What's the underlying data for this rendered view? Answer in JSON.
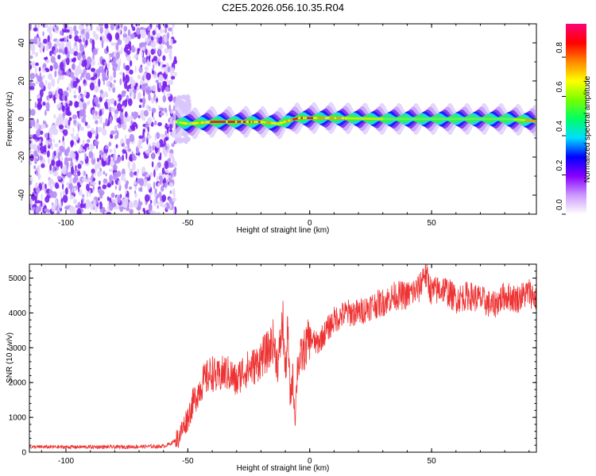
{
  "title": "C2E5.2026.056.10.35.R04",
  "chart_data": [
    {
      "type": "heatmap",
      "name": "spectrogram",
      "xlabel": "Height of straight line (km)",
      "ylabel": "Frequency (Hz)",
      "xlim": [
        -115,
        93
      ],
      "ylim": [
        -50,
        50
      ],
      "xticks": [
        -100,
        -50,
        0,
        50
      ],
      "yticks": [
        40,
        20,
        0,
        -20,
        -40
      ],
      "noise_region_x": [
        -115,
        -55
      ],
      "signal_band": [
        {
          "x": -55,
          "freq": -1.5,
          "amp": 0.35
        },
        {
          "x": -50,
          "freq": -2.5,
          "amp": 0.55
        },
        {
          "x": -40,
          "freq": -1.5,
          "amp": 0.9
        },
        {
          "x": -20,
          "freq": -1.5,
          "amp": 0.9
        },
        {
          "x": -13,
          "freq": -2.5,
          "amp": 0.6
        },
        {
          "x": -5,
          "freq": 0.5,
          "amp": 0.95
        },
        {
          "x": 10,
          "freq": 0.5,
          "amp": 0.75
        },
        {
          "x": 30,
          "freq": 0,
          "amp": 0.55
        },
        {
          "x": 60,
          "freq": 0,
          "amp": 0.5
        },
        {
          "x": 80,
          "freq": 0,
          "amp": 0.45
        },
        {
          "x": 93,
          "freq": -1,
          "amp": 0.85
        }
      ],
      "colorbar": {
        "label": "Normalized spectral amplitude",
        "ticks": [
          "0.0",
          "0.2",
          "0.4",
          "0.6",
          "0.8"
        ],
        "range": [
          0,
          0.97
        ],
        "colors": [
          "#ffffff",
          "#cc99ff",
          "#8800ff",
          "#0000ff",
          "#00ddff",
          "#00ff66",
          "#77ff00",
          "#ffff00",
          "#ff8800",
          "#ff0000",
          "#ff0077"
        ]
      }
    },
    {
      "type": "line",
      "name": "snr",
      "xlabel": "Height of straight line (km)",
      "ylabel": "SNR (10 * v/v)",
      "xlim": [
        -115,
        93
      ],
      "ylim": [
        0,
        5400
      ],
      "xticks": [
        -100,
        -50,
        0,
        50
      ],
      "yticks": [
        0,
        1000,
        2000,
        3000,
        4000,
        5000
      ],
      "color": "#ee3333",
      "series": {
        "x": [
          -115,
          -100,
          -80,
          -60,
          -57,
          -54,
          -52,
          -50,
          -48,
          -46,
          -44,
          -42,
          -40,
          -38,
          -35,
          -32,
          -30,
          -28,
          -25,
          -22,
          -20,
          -17,
          -15,
          -13,
          -11,
          -10,
          -9,
          -8,
          -7,
          -6,
          -5,
          -3,
          0,
          3,
          6,
          10,
          15,
          20,
          25,
          30,
          35,
          40,
          45,
          47,
          50,
          55,
          60,
          65,
          70,
          75,
          80,
          85,
          90,
          93
        ],
        "y": [
          150,
          150,
          150,
          170,
          250,
          400,
          700,
          1000,
          1400,
          1700,
          2000,
          2150,
          2300,
          2100,
          2300,
          2200,
          2000,
          2300,
          2400,
          2500,
          2700,
          2900,
          3200,
          2500,
          3800,
          2200,
          3500,
          1500,
          2200,
          1000,
          2500,
          2800,
          3300,
          3100,
          3400,
          3800,
          4000,
          4000,
          4200,
          4300,
          4500,
          4500,
          4700,
          5200,
          4600,
          4700,
          4400,
          4500,
          4400,
          4200,
          4500,
          4400,
          4600,
          4400
        ]
      }
    }
  ]
}
